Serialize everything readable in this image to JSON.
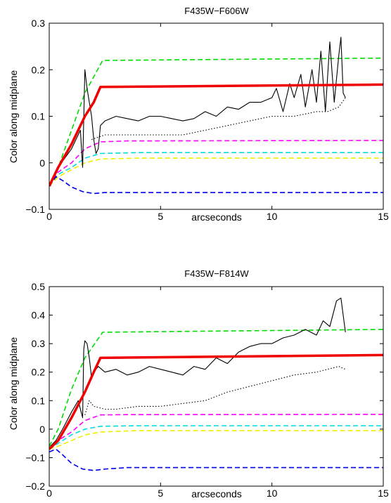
{
  "chart_data": [
    {
      "type": "line",
      "title": "F435W−F606W",
      "xlabel": "arcseconds",
      "ylabel": "Color along midplane",
      "xlim": [
        0,
        15
      ],
      "ylim": [
        -0.1,
        0.3
      ],
      "xticks": [
        0,
        5,
        10,
        15
      ],
      "xtick_labels": [
        "0",
        "5",
        "10",
        "15"
      ],
      "yticks": [
        -0.1,
        0,
        0.1,
        0.2,
        0.3
      ],
      "ytick_labels": [
        "−0.1",
        "0",
        "0.1",
        "0.2",
        "0.3"
      ],
      "grid": false,
      "legend": "none",
      "series": [
        {
          "color": "#00dd00",
          "style": "dashed",
          "x": [
            0,
            0.4,
            1.0,
            1.6,
            2.4,
            15
          ],
          "y": [
            -0.05,
            -0.01,
            0.07,
            0.15,
            0.22,
            0.225
          ]
        },
        {
          "color": "#ff00ff",
          "style": "dashed",
          "x": [
            0,
            0.4,
            1.0,
            1.6,
            2.3,
            3.5,
            15
          ],
          "y": [
            -0.05,
            -0.02,
            0.0,
            0.03,
            0.045,
            0.047,
            0.048
          ]
        },
        {
          "color": "#00dddd",
          "style": "dashed",
          "x": [
            0,
            0.4,
            1.0,
            1.6,
            2.3,
            4,
            15
          ],
          "y": [
            -0.05,
            -0.025,
            -0.01,
            0.01,
            0.02,
            0.022,
            0.022
          ]
        },
        {
          "color": "#eeee00",
          "style": "dashed",
          "x": [
            0,
            0.4,
            1.0,
            1.6,
            2.3,
            4,
            15
          ],
          "y": [
            -0.05,
            -0.03,
            -0.015,
            0.0,
            0.008,
            0.01,
            0.01
          ]
        },
        {
          "color": "#0000ee",
          "style": "dashed",
          "x": [
            0,
            0.3,
            0.6,
            1.0,
            1.5,
            2.0,
            2.5,
            3.5,
            15
          ],
          "y": [
            -0.05,
            -0.03,
            -0.038,
            -0.052,
            -0.062,
            -0.066,
            -0.064,
            -0.064,
            -0.064
          ]
        },
        {
          "color": "#000000",
          "style": "solid",
          "x": [
            0.05,
            0.2,
            0.4,
            0.7,
            1.0,
            1.2,
            1.4,
            1.5,
            1.6,
            1.7,
            1.8,
            1.9,
            2.0,
            2.1,
            2.2,
            2.3,
            2.5,
            3,
            3.5,
            4,
            4.5,
            5,
            5.5,
            6,
            6.5,
            7,
            7.5,
            8,
            8.5,
            9,
            9.5,
            10,
            10.2,
            10.5,
            10.8,
            11,
            11.3,
            11.5,
            11.8,
            12,
            12.2,
            12.4,
            12.6,
            12.8,
            13,
            13.1,
            13.2,
            13.3
          ],
          "y": [
            -0.05,
            -0.03,
            -0.01,
            0.01,
            0.03,
            0.05,
            0.07,
            -0.01,
            0.2,
            0.16,
            0.13,
            0.1,
            0.05,
            0.02,
            0.03,
            0.08,
            0.09,
            0.1,
            0.095,
            0.09,
            0.1,
            0.1,
            0.095,
            0.09,
            0.095,
            0.11,
            0.1,
            0.12,
            0.115,
            0.13,
            0.13,
            0.14,
            0.16,
            0.11,
            0.17,
            0.14,
            0.19,
            0.12,
            0.2,
            0.13,
            0.24,
            0.11,
            0.26,
            0.13,
            0.23,
            0.27,
            0.15,
            0.14
          ]
        },
        {
          "color": "#000000",
          "style": "dotted",
          "x": [
            1.9,
            2.5,
            3,
            4,
            5,
            6,
            7,
            8,
            9,
            10,
            11,
            12,
            12.5,
            13,
            13.3
          ],
          "y": [
            0.05,
            0.06,
            0.06,
            0.06,
            0.06,
            0.06,
            0.07,
            0.08,
            0.09,
            0.1,
            0.1,
            0.11,
            0.11,
            0.12,
            0.14
          ]
        },
        {
          "color": "#ee0000",
          "style": "solid-thick",
          "x": [
            0,
            0.4,
            1.0,
            1.6,
            2.0,
            2.3,
            15
          ],
          "y": [
            -0.05,
            -0.01,
            0.04,
            0.1,
            0.13,
            0.163,
            0.168
          ]
        }
      ]
    },
    {
      "type": "line",
      "title": "F435W−F814W",
      "xlabel": "arcseconds",
      "ylabel": "Color along midplane",
      "xlim": [
        0,
        15
      ],
      "ylim": [
        -0.2,
        0.5
      ],
      "xticks": [
        0,
        5,
        10,
        15
      ],
      "xtick_labels": [
        "0",
        "5",
        "10",
        "15"
      ],
      "yticks": [
        -0.2,
        -0.1,
        0,
        0.1,
        0.2,
        0.3,
        0.4,
        0.5
      ],
      "ytick_labels": [
        "−0.2",
        "−0.1",
        "0",
        "0.1",
        "0.2",
        "0.3",
        "0.4",
        "0.5"
      ],
      "grid": false,
      "legend": "none",
      "series": [
        {
          "color": "#00dd00",
          "style": "dashed",
          "x": [
            0,
            0.4,
            1.0,
            1.6,
            2.4,
            15
          ],
          "y": [
            -0.06,
            0.0,
            0.14,
            0.25,
            0.34,
            0.35
          ]
        },
        {
          "color": "#ff00ff",
          "style": "dashed",
          "x": [
            0,
            0.4,
            1.0,
            1.6,
            2.3,
            3.5,
            15
          ],
          "y": [
            -0.07,
            -0.04,
            -0.01,
            0.03,
            0.05,
            0.051,
            0.052
          ]
        },
        {
          "color": "#00dddd",
          "style": "dashed",
          "x": [
            0,
            0.4,
            1.0,
            1.6,
            2.3,
            4,
            15
          ],
          "y": [
            -0.07,
            -0.05,
            -0.02,
            0.0,
            0.01,
            0.012,
            0.012
          ]
        },
        {
          "color": "#eeee00",
          "style": "dashed",
          "x": [
            0,
            0.4,
            1.0,
            1.6,
            2.3,
            4,
            15
          ],
          "y": [
            -0.07,
            -0.06,
            -0.04,
            -0.02,
            -0.01,
            -0.005,
            -0.005
          ]
        },
        {
          "color": "#0000ee",
          "style": "dashed",
          "x": [
            0,
            0.3,
            0.6,
            1.0,
            1.5,
            2.0,
            2.5,
            3.5,
            15
          ],
          "y": [
            -0.08,
            -0.07,
            -0.09,
            -0.12,
            -0.14,
            -0.145,
            -0.14,
            -0.135,
            -0.135
          ]
        },
        {
          "color": "#000000",
          "style": "solid",
          "x": [
            0.05,
            0.3,
            0.6,
            1.0,
            1.3,
            1.5,
            1.55,
            1.6,
            1.7,
            1.8,
            1.9,
            2.0,
            2.2,
            2.5,
            3,
            3.5,
            4,
            4.5,
            5,
            5.5,
            6,
            6.5,
            7,
            7.5,
            8,
            8.5,
            9,
            9.5,
            10,
            10.5,
            11,
            11.5,
            12,
            12.3,
            12.6,
            12.9,
            13.1,
            13.3
          ],
          "y": [
            -0.06,
            -0.04,
            0.0,
            0.06,
            0.1,
            0.04,
            0.28,
            0.31,
            0.3,
            0.25,
            0.18,
            0.2,
            0.22,
            0.2,
            0.21,
            0.19,
            0.2,
            0.22,
            0.21,
            0.2,
            0.19,
            0.22,
            0.21,
            0.25,
            0.23,
            0.27,
            0.29,
            0.3,
            0.3,
            0.32,
            0.33,
            0.35,
            0.33,
            0.38,
            0.36,
            0.45,
            0.46,
            0.34
          ]
        },
        {
          "color": "#000000",
          "style": "dotted",
          "x": [
            1.6,
            1.8,
            2.0,
            2.5,
            3,
            4,
            5,
            6,
            7,
            8,
            9,
            10,
            11,
            12,
            12.5,
            13,
            13.3
          ],
          "y": [
            0.05,
            0.1,
            0.08,
            0.07,
            0.07,
            0.08,
            0.08,
            0.09,
            0.1,
            0.13,
            0.15,
            0.17,
            0.19,
            0.2,
            0.21,
            0.22,
            0.21
          ]
        },
        {
          "color": "#ee0000",
          "style": "solid-thick",
          "x": [
            0,
            0.4,
            1.0,
            1.6,
            2.0,
            2.3,
            15
          ],
          "y": [
            -0.07,
            -0.04,
            0.04,
            0.13,
            0.2,
            0.25,
            0.26
          ]
        }
      ]
    }
  ]
}
